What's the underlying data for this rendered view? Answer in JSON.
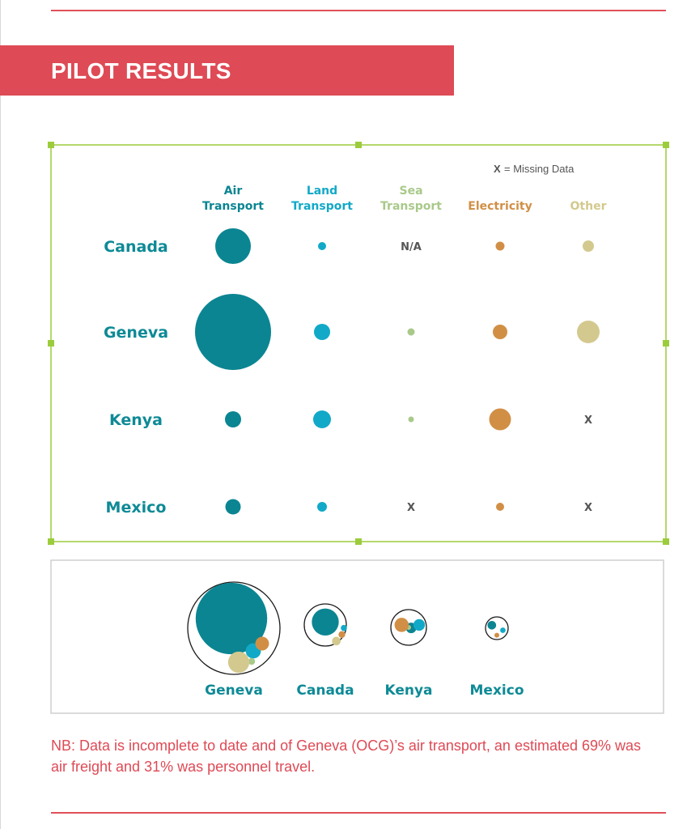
{
  "page": {
    "title": "PILOT RESULTS",
    "note": "NB: Data is incomplete to date and of Geneva (OCG)’s air transport, an estimated 69% was air freight and 31% was personnel travel.",
    "legend": {
      "symbol": "X",
      "text": "= Missing Data"
    },
    "colors": {
      "accent": "#de4a55",
      "label": "#0e8a96",
      "selection": "#9ccc3c"
    }
  },
  "chart_data": [
    {
      "type": "bubble_matrix",
      "title": "",
      "rows": [
        "Canada",
        "Geneva",
        "Kenya",
        "Mexico"
      ],
      "columns": [
        {
          "label_lines": [
            "Air",
            "Transport"
          ],
          "color": "#0b8592"
        },
        {
          "label_lines": [
            "Land",
            "Transport"
          ],
          "color": "#12a9c8"
        },
        {
          "label_lines": [
            "Sea",
            "Transport"
          ],
          "color": "#a9c98a"
        },
        {
          "label_lines": [
            "Electricity"
          ],
          "color": "#d18f46"
        },
        {
          "label_lines": [
            "Other"
          ],
          "color": "#d3c98e"
        }
      ],
      "values": [
        [
          22,
          5,
          "N/A",
          5.5,
          7
        ],
        [
          47,
          10,
          4.5,
          9,
          14
        ],
        [
          10,
          11,
          3.5,
          13.5,
          "X"
        ],
        [
          9.5,
          6,
          "X",
          5,
          "X"
        ]
      ],
      "value_note": "relative bubble radius (unitless, estimated)"
    },
    {
      "type": "bubble_pack",
      "title": "",
      "series": [
        "Air Transport",
        "Land Transport",
        "Sea Transport",
        "Electricity",
        "Other"
      ],
      "groups": [
        {
          "name": "Geneva",
          "values": [
            47,
            10,
            4.5,
            9,
            14
          ]
        },
        {
          "name": "Canada",
          "values": [
            22,
            5,
            0,
            5.5,
            7
          ]
        },
        {
          "name": "Kenya",
          "values": [
            10,
            11,
            3.5,
            13.5,
            0
          ]
        },
        {
          "name": "Mexico",
          "values": [
            9.5,
            6,
            0,
            5,
            0
          ]
        }
      ]
    }
  ]
}
